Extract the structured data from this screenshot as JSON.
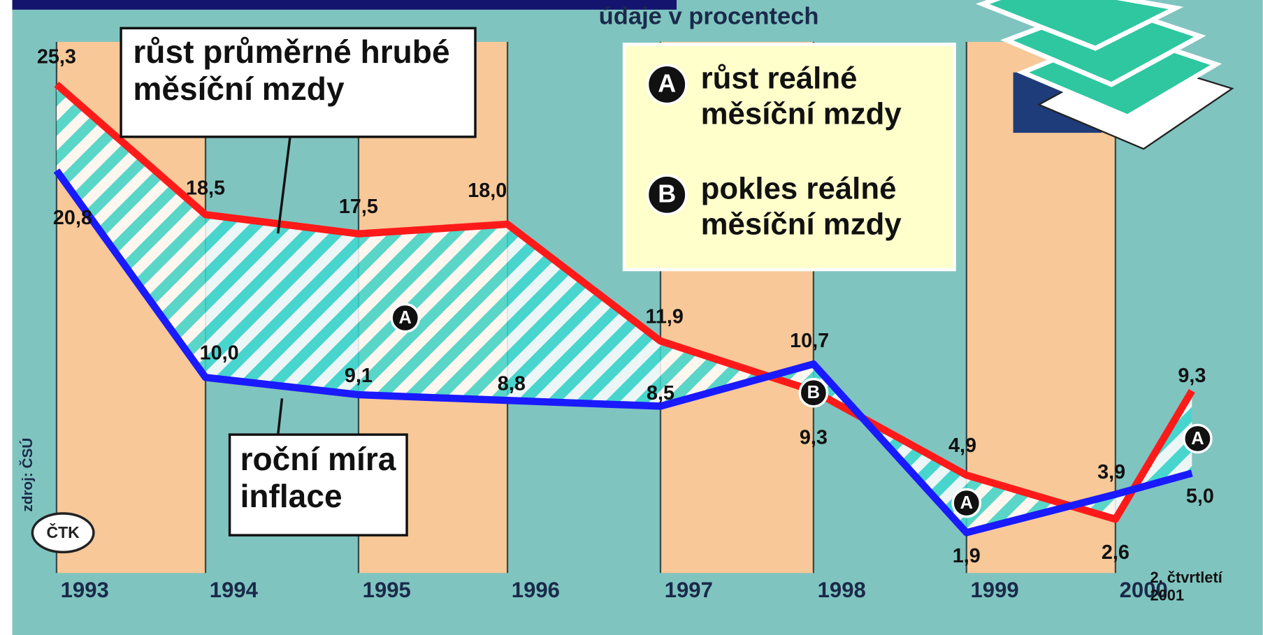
{
  "chart_data": {
    "type": "line",
    "subtitle": "údaje v procentech",
    "categories": [
      "1993",
      "1994",
      "1995",
      "1996",
      "1997",
      "1998",
      "1999",
      "2000",
      "2. čtvrtletí 2001"
    ],
    "series": [
      {
        "name": "růst průměrné hrubé měsíční mzdy",
        "color": "#ff1a1a",
        "values": [
          25.3,
          18.5,
          17.5,
          18.0,
          11.9,
          9.3,
          4.9,
          2.6,
          9.3
        ],
        "value_labels": [
          "25,3",
          "18,5",
          "17,5",
          "18,0",
          "11,9",
          "9,3",
          "4,9",
          "2,6",
          "9,3"
        ]
      },
      {
        "name": "roční míra inflace",
        "color": "#1a1aff",
        "values": [
          20.8,
          10.0,
          9.1,
          8.8,
          8.5,
          10.7,
          1.9,
          3.9,
          5.0
        ],
        "value_labels": [
          "20,8",
          "10,0",
          "9,1",
          "8,8",
          "8,5",
          "10,7",
          "1,9",
          "3,9",
          "5,0"
        ]
      }
    ],
    "legend": [
      {
        "key": "A",
        "label": "růst reálné měsíční mzdy"
      },
      {
        "key": "B",
        "label": "pokles reálné měsíční mzdy"
      }
    ],
    "source": "zdroj: ČSÚ",
    "logo": "ČTK"
  }
}
